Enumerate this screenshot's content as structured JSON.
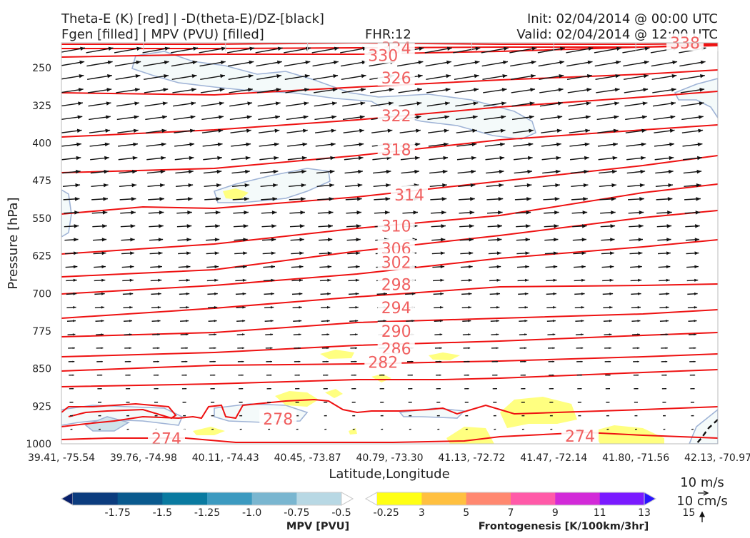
{
  "header": {
    "title_left_1": "Theta-E (K) [red] | -D(theta-E)/DZ-[black]",
    "title_left_2": "Fgen [filled] | MPV (PVU) [filled]",
    "fhr": "FHR:12",
    "init": "Init: 02/04/2014 @ 00:00 UTC",
    "valid": "Valid: 02/04/2014 @ 12:00 UTC"
  },
  "colors": {
    "theta_e_line": "#ee1111",
    "theta_e_label": "#f06060",
    "arrow": "#111111",
    "mpv_outline": "#9fb3d6",
    "fgen_fill": "#ffff80"
  },
  "chart_data": {
    "type": "cross-section",
    "ylabel": "Pressure [hPa]",
    "xlabel": "Latitude,Longitude",
    "y_ticks": [
      "250",
      "325",
      "400",
      "475",
      "550",
      "625",
      "700",
      "775",
      "850",
      "925",
      "1000"
    ],
    "ylim": [
      1000,
      200
    ],
    "x_ticks": [
      "39.41, -75.54",
      "39.76, -74.98",
      "40.11, -74.43",
      "40.45, -73.87",
      "40.79, -73.30",
      "41.13, -72.72",
      "41.47, -72.14",
      "41.80, -71.56",
      "42.13, -70.97"
    ],
    "theta_e_labels": [
      {
        "value": "334",
        "x": 0.51,
        "p": 210
      },
      {
        "value": "330",
        "x": 0.49,
        "p": 225
      },
      {
        "value": "326",
        "x": 0.51,
        "p": 270
      },
      {
        "value": "322",
        "x": 0.51,
        "p": 345
      },
      {
        "value": "318",
        "x": 0.51,
        "p": 413
      },
      {
        "value": "314",
        "x": 0.53,
        "p": 503
      },
      {
        "value": "310",
        "x": 0.51,
        "p": 565
      },
      {
        "value": "306",
        "x": 0.51,
        "p": 610
      },
      {
        "value": "302",
        "x": 0.51,
        "p": 638
      },
      {
        "value": "298",
        "x": 0.51,
        "p": 682
      },
      {
        "value": "294",
        "x": 0.51,
        "p": 728
      },
      {
        "value": "290",
        "x": 0.51,
        "p": 775
      },
      {
        "value": "286",
        "x": 0.51,
        "p": 810
      },
      {
        "value": "282",
        "x": 0.49,
        "p": 837
      },
      {
        "value": "278",
        "x": 0.33,
        "p": 950
      },
      {
        "value": "274",
        "x": 0.16,
        "p": 989
      },
      {
        "value": "274",
        "x": 0.79,
        "p": 984
      },
      {
        "value": "338",
        "x": 0.95,
        "p": 200
      }
    ],
    "wind_legend": {
      "horizontal": "10 m/s",
      "vertical": "10 cm/s"
    }
  },
  "colorbars": {
    "mpv": {
      "label": "MPV [PVU]",
      "ticks": [
        "-1.75",
        "-1.5",
        "-1.25",
        "-1.0",
        "-0.75",
        "-0.5",
        "-0.25"
      ],
      "colors": [
        "#08206b",
        "#0c3c7e",
        "#0a5a8e",
        "#0a7aa0",
        "#3c9ac0",
        "#7ab6d0",
        "#b8d8e4",
        "#ffffff"
      ]
    },
    "fgen": {
      "label": "Frontogenesis [K/100km/3hr]",
      "ticks": [
        "3",
        "5",
        "7",
        "9",
        "11",
        "13",
        "15"
      ],
      "colors": [
        "#ffffff",
        "#ffff14",
        "#ffc040",
        "#ff8870",
        "#ff5aa8",
        "#d22ad8",
        "#7a1aff",
        "#2a14ff"
      ]
    }
  }
}
